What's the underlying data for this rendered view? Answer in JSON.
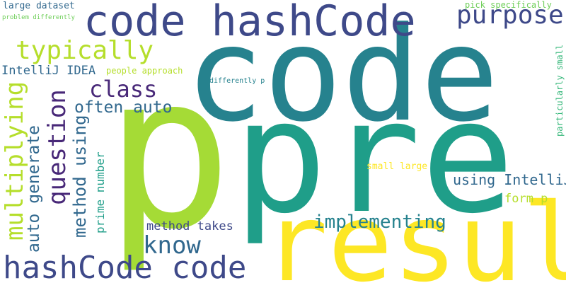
{
  "colors": {
    "background": "#ffffff",
    "palette": [
      "#fde725",
      "#b5de2b",
      "#6ece58",
      "#35b779",
      "#1f9e89",
      "#26828e",
      "#31688e",
      "#3e4989",
      "#482878",
      "#440154"
    ]
  },
  "words": [
    {
      "id": "code",
      "text": "code",
      "color": "#26828e"
    },
    {
      "id": "p",
      "text": "p",
      "color": "#a5db36"
    },
    {
      "id": "pre",
      "text": "pre",
      "color": "#1f9e89"
    },
    {
      "id": "result",
      "text": "result",
      "color": "#fde725"
    },
    {
      "id": "code-hashcode",
      "text": "code hashCode",
      "color": "#3e4989"
    },
    {
      "id": "hashcode-code",
      "text": "hashCode code",
      "color": "#3e4989"
    },
    {
      "id": "purpose",
      "text": "purpose",
      "color": "#3e4989"
    },
    {
      "id": "typically",
      "text": "typically",
      "color": "#b5de2b"
    },
    {
      "id": "class",
      "text": "class",
      "color": "#482878"
    },
    {
      "id": "question",
      "text": "question",
      "color": "#482878"
    },
    {
      "id": "multiplying",
      "text": "multiplying",
      "color": "#b5de2b"
    },
    {
      "id": "often-auto",
      "text": "often auto",
      "color": "#31688e"
    },
    {
      "id": "auto-generate",
      "text": "auto generate",
      "color": "#31688e"
    },
    {
      "id": "method-using",
      "text": "method using",
      "color": "#31688e"
    },
    {
      "id": "prime-number",
      "text": "prime number",
      "color": "#1f9e89"
    },
    {
      "id": "know",
      "text": "know",
      "color": "#31688e"
    },
    {
      "id": "implementing",
      "text": "implementing",
      "color": "#26828e"
    },
    {
      "id": "method-takes",
      "text": "method takes",
      "color": "#3e4989"
    },
    {
      "id": "using-intellij",
      "text": "using IntelliJ",
      "color": "#31688e"
    },
    {
      "id": "form-p",
      "text": "form p",
      "color": "#b5de2b"
    },
    {
      "id": "small-large",
      "text": "small large",
      "color": "#fde725"
    },
    {
      "id": "intellij-idea",
      "text": "IntelliJ IDEA",
      "color": "#31688e"
    },
    {
      "id": "large-dataset",
      "text": "large dataset",
      "color": "#31688e"
    },
    {
      "id": "problem-differently",
      "text": "problem differently",
      "color": "#6ece58"
    },
    {
      "id": "people-approach",
      "text": "people approach",
      "color": "#b5de2b"
    },
    {
      "id": "differently-p",
      "text": "differently p",
      "color": "#26828e"
    },
    {
      "id": "pick-specifically",
      "text": "pick specifically",
      "color": "#6ece58"
    },
    {
      "id": "particularly-small",
      "text": "particularly small",
      "color": "#35b779"
    }
  ]
}
